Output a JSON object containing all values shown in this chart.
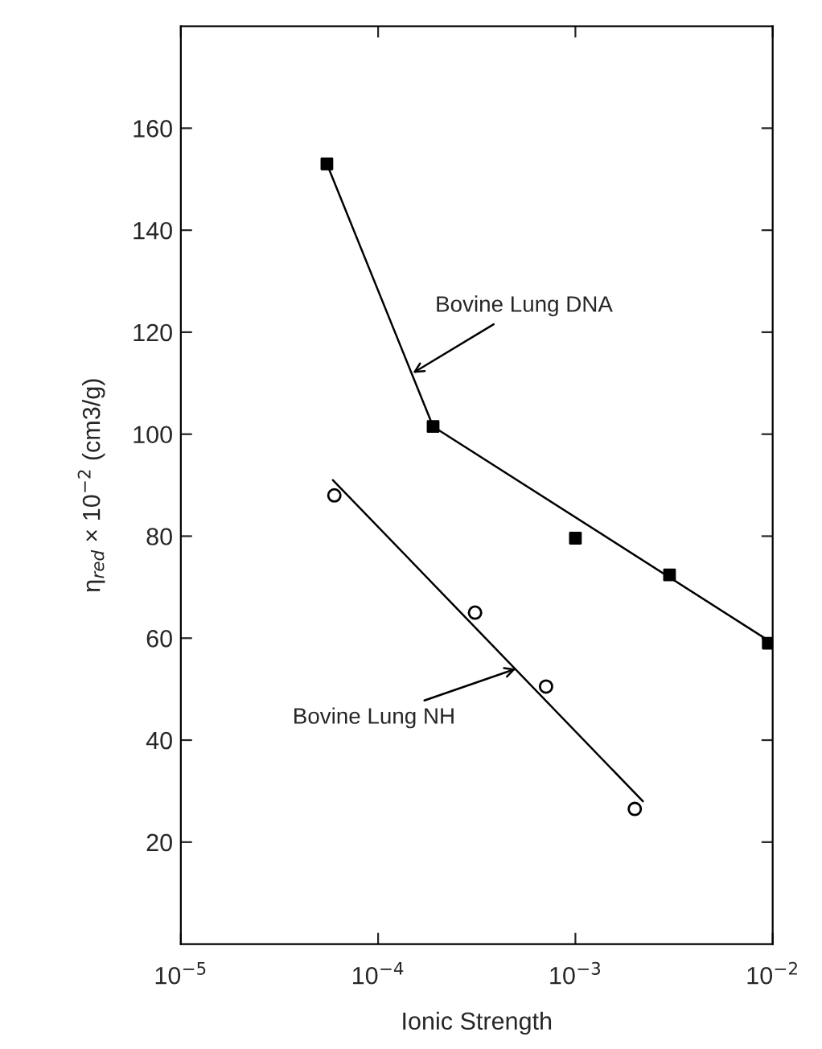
{
  "chart_data": {
    "type": "scatter",
    "xlabel": "Ionic Strength",
    "ylabel": "η$_{red}$ × 10$^{−2}$ (cm3/g)",
    "log": "x",
    "grid": false,
    "xlim": [
      1e-05,
      0.01
    ],
    "xticks": [
      {
        "value": 1e-05,
        "label": "10$^{−5}$"
      },
      {
        "value": 0.0001,
        "label": "10$^{−4}$"
      },
      {
        "value": 0.001,
        "label": "10$^{−3}$"
      },
      {
        "value": 0.01,
        "label": "10$^{−2}$"
      }
    ],
    "ylim": [
      0,
      180
    ],
    "yticks": [
      20,
      40,
      60,
      80,
      100,
      120,
      140,
      160
    ],
    "series": [
      {
        "marker": "square",
        "color": "#000000",
        "x": [
          5.5e-05,
          0.00019,
          0.001,
          0.003,
          0.0095
        ],
        "values": [
          153,
          101.5,
          79.6,
          72.4,
          59
        ]
      },
      {
        "marker": "circle",
        "color": "#000000",
        "x": [
          6e-05,
          0.00031,
          0.00071,
          0.002
        ],
        "values": [
          88,
          65,
          50.5,
          26.5
        ]
      },
      {
        "type": "line",
        "marker": "none",
        "color": "#000000",
        "x": [
          5.5e-05,
          0.00019,
          0.01
        ],
        "values": [
          153,
          101.5,
          59
        ]
      },
      {
        "type": "line",
        "marker": "none",
        "color": "#000000",
        "x": [
          5.9e-05,
          0.0022
        ],
        "values": [
          91,
          28
        ]
      }
    ],
    "annotations": [
      {
        "text": "Bovine Lung DNA",
        "x": 0.00015,
        "y": 112
      },
      {
        "text": "Bovine Lung NH",
        "x": 0.0005,
        "y": 54
      }
    ]
  }
}
